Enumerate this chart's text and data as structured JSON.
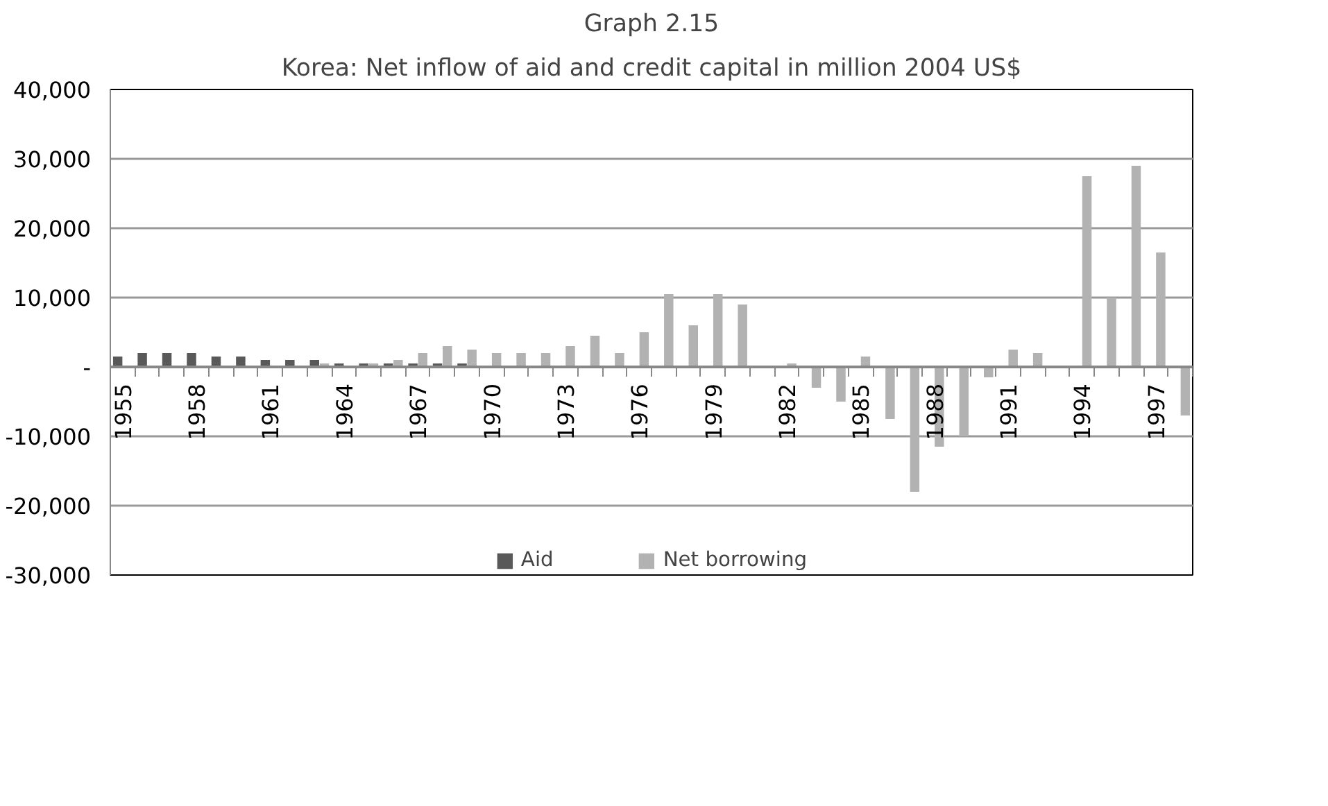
{
  "chart_data": {
    "type": "bar",
    "title": "Graph 2.15",
    "subtitle": "Korea: Net inflow of aid and credit capital in million 2004 US$",
    "categories": [
      "1955",
      null,
      null,
      "1958",
      null,
      null,
      "1961",
      null,
      null,
      "1964",
      null,
      null,
      "1967",
      null,
      null,
      "1970",
      null,
      null,
      "1973",
      null,
      null,
      "1976",
      null,
      null,
      "1979",
      null,
      null,
      "1982",
      null,
      null,
      "1985",
      null,
      null,
      "1988",
      null,
      null,
      "1991",
      null,
      null,
      "1994",
      null,
      null,
      "1997",
      null
    ],
    "series": [
      {
        "name": "Aid",
        "color": "#595959",
        "values": [
          1500,
          2000,
          2000,
          2000,
          1500,
          1500,
          1000,
          1000,
          1000,
          500,
          500,
          500,
          500,
          500,
          500,
          0,
          0,
          0,
          0,
          0,
          0,
          0,
          0,
          0,
          0,
          0,
          0,
          0,
          0,
          0,
          0,
          0,
          0,
          0,
          0,
          0,
          0,
          0,
          0,
          0,
          0,
          0,
          0,
          0
        ]
      },
      {
        "name": "Net borrowing",
        "color": "#b2b2b2",
        "values": [
          0,
          0,
          0,
          0,
          0,
          0,
          0,
          0,
          500,
          0,
          500,
          1000,
          2000,
          3000,
          2500,
          2000,
          2000,
          2000,
          3000,
          4500,
          2000,
          5000,
          10500,
          6000,
          10500,
          9000,
          0,
          500,
          -3000,
          -5000,
          1500,
          -7500,
          -18000,
          -11500,
          -10000,
          -1500,
          2500,
          2000,
          0,
          27500,
          10000,
          29000,
          16500,
          -7000
        ]
      }
    ],
    "ylim": [
      -30000,
      40000
    ],
    "yticks": [
      {
        "value": -30000,
        "label": "-30,000"
      },
      {
        "value": -20000,
        "label": "-20,000"
      },
      {
        "value": -10000,
        "label": "-10,000"
      },
      {
        "value": 0,
        "label": "-"
      },
      {
        "value": 10000,
        "label": "10,000"
      },
      {
        "value": 20000,
        "label": "20,000"
      },
      {
        "value": 30000,
        "label": "30,000"
      },
      {
        "value": 40000,
        "label": "40,000"
      }
    ],
    "grid": "y",
    "legend": "bottom"
  }
}
